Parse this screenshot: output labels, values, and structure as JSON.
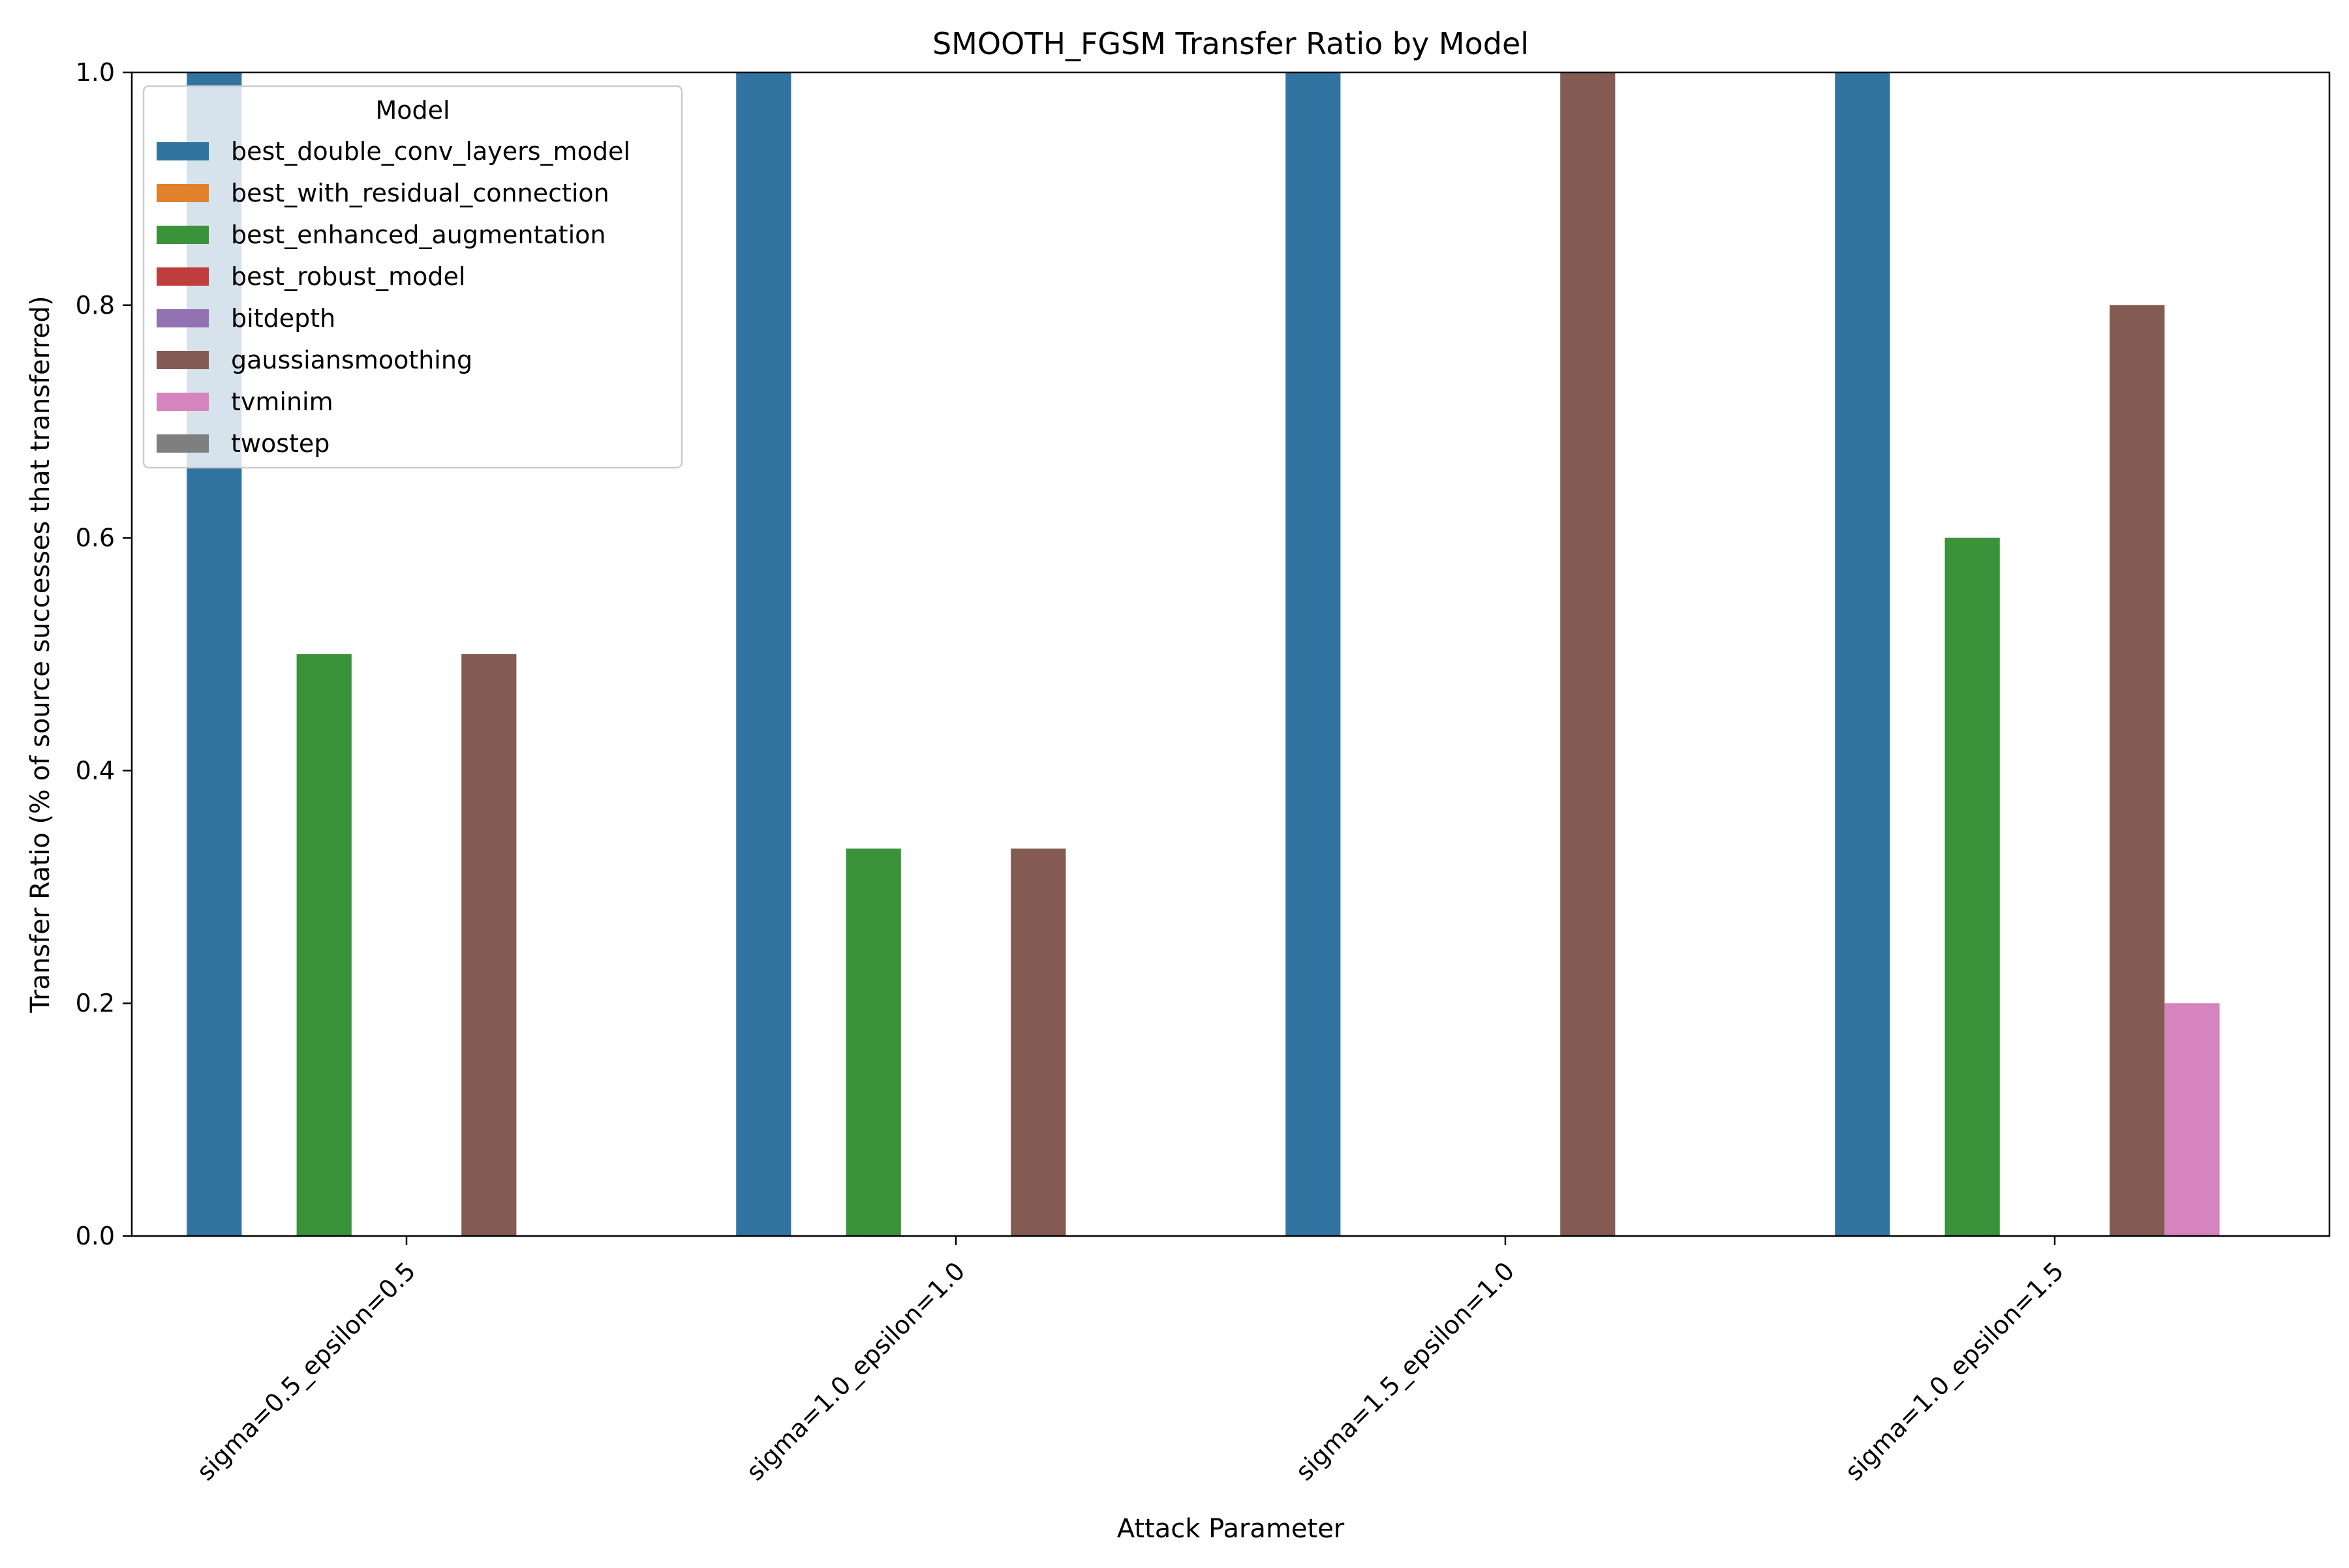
{
  "chart_data": {
    "type": "bar",
    "title": "SMOOTH_FGSM Transfer Ratio by Model",
    "xlabel": "Attack Parameter",
    "ylabel": "Transfer Ratio (% of source successes that transferred)",
    "ylim": [
      0,
      1.0
    ],
    "yticks": [
      "0.0",
      "0.2",
      "0.4",
      "0.6",
      "0.8",
      "1.0"
    ],
    "grid": false,
    "legend_title": "Model",
    "legend_position": "top-left",
    "categories": [
      "sigma=0.5_epsilon=0.5",
      "sigma=1.0_epsilon=1.0",
      "sigma=1.5_epsilon=1.0",
      "sigma=1.0_epsilon=1.5"
    ],
    "series": [
      {
        "name": "best_double_conv_layers_model",
        "color": "#3274a1",
        "values": [
          1.0,
          1.0,
          1.0,
          1.0
        ]
      },
      {
        "name": "best_with_residual_connection",
        "color": "#e1812c",
        "values": [
          0,
          0,
          0,
          0
        ]
      },
      {
        "name": "best_enhanced_augmentation",
        "color": "#3a923a",
        "values": [
          0.5,
          0.333,
          0,
          0.6
        ]
      },
      {
        "name": "best_robust_model",
        "color": "#c03d3e",
        "values": [
          0,
          0,
          0,
          0
        ]
      },
      {
        "name": "bitdepth",
        "color": "#9372b2",
        "values": [
          0,
          0,
          0,
          0
        ]
      },
      {
        "name": "gaussiansmoothing",
        "color": "#845b53",
        "values": [
          0.5,
          0.333,
          1.0,
          0.8
        ]
      },
      {
        "name": "tvminim",
        "color": "#d684bd",
        "values": [
          0,
          0,
          0,
          0.2
        ]
      },
      {
        "name": "twostep",
        "color": "#7f7f7f",
        "values": [
          0,
          0,
          0,
          0
        ]
      }
    ]
  }
}
